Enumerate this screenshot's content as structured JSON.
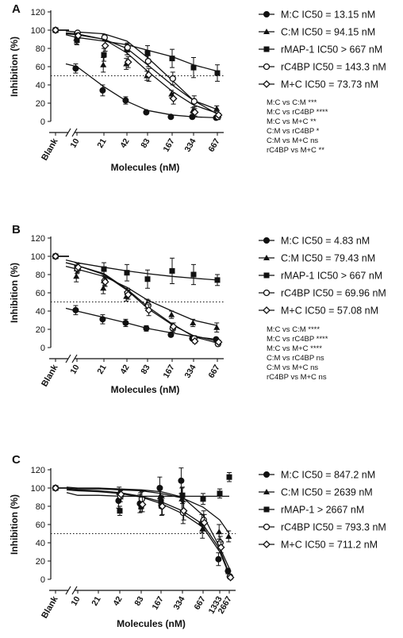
{
  "chart_data": [
    {
      "type": "line",
      "panel_label": "A",
      "ylabel": "Inhibition (%)",
      "xlabel": "Molecules (nM)",
      "ylim": [
        0,
        120
      ],
      "yticks": [
        "0",
        "20",
        "40",
        "60",
        "80",
        "100",
        "120"
      ],
      "blank_label": "Blank",
      "categories": [
        "10",
        "21",
        "42",
        "83",
        "167",
        "334",
        "667"
      ],
      "reference_line": 50,
      "legend_placement": "right",
      "series": [
        {
          "name": "M:C IC50 = 13.15 nM",
          "marker": "circle-filled",
          "blank": 100,
          "values": [
            58,
            34,
            23,
            10,
            5,
            5,
            4
          ],
          "errors": [
            5,
            6,
            4,
            1,
            1,
            1,
            1
          ],
          "fit": [
            60,
            38,
            22,
            12,
            7,
            5,
            4
          ]
        },
        {
          "name": "C:M IC50 = 94.15 nM",
          "marker": "triangle-filled",
          "blank": 100,
          "values": [
            91,
            62,
            63,
            50,
            30,
            12,
            14
          ],
          "errors": [
            6,
            8,
            6,
            5,
            4,
            3,
            3
          ],
          "fit": [
            95,
            90,
            80,
            62,
            40,
            23,
            13
          ]
        },
        {
          "name": "rMAP-1 IC50 > 667 nM",
          "marker": "square-filled",
          "blank": 100,
          "values": [
            89,
            73,
            79,
            75,
            69,
            59,
            53
          ],
          "errors": [
            5,
            7,
            6,
            8,
            10,
            11,
            9
          ],
          "fit": [
            92,
            88,
            84,
            78,
            71,
            62,
            55
          ]
        },
        {
          "name": "rC4BP IC50 = 143.3 nM",
          "marker": "circle-open",
          "blank": 100,
          "values": [
            97,
            92,
            81,
            66,
            47,
            22,
            5
          ],
          "errors": [
            2,
            3,
            5,
            6,
            7,
            6,
            3
          ],
          "fit": [
            98,
            96,
            88,
            70,
            45,
            23,
            8
          ]
        },
        {
          "name": "M+C IC50 = 73.73 nM",
          "marker": "diamond-open",
          "blank": 100,
          "values": [
            94,
            83,
            65,
            51,
            25,
            10,
            7
          ],
          "errors": [
            3,
            6,
            6,
            7,
            6,
            4,
            2
          ],
          "fit": [
            96,
            90,
            75,
            55,
            33,
            18,
            9
          ]
        }
      ],
      "stats": [
        "M:C vs C:M ***",
        "M:C vs rC4BP ****",
        "M:C vs M+C **",
        "C:M vs rC4BP *",
        "C:M vs M+C ns",
        "rC4BP vs M+C **"
      ]
    },
    {
      "type": "line",
      "panel_label": "B",
      "ylabel": "Inhibition (%)",
      "xlabel": "Molecules (nM)",
      "ylim": [
        0,
        120
      ],
      "yticks": [
        "0",
        "20",
        "40",
        "60",
        "80",
        "100",
        "120"
      ],
      "blank_label": "Blank",
      "categories": [
        "10",
        "21",
        "42",
        "83",
        "167",
        "334",
        "667"
      ],
      "reference_line": 50,
      "legend_placement": "right",
      "series": [
        {
          "name": "M:C IC50 = 4.83 nM",
          "marker": "circle-filled",
          "blank": 100,
          "values": [
            41,
            31,
            27,
            21,
            14,
            10,
            9
          ],
          "errors": [
            5,
            5,
            4,
            3,
            2,
            2,
            2
          ],
          "fit": [
            40,
            33,
            27,
            21,
            16,
            12,
            9
          ]
        },
        {
          "name": "C:M IC50 = 79.43 nM",
          "marker": "triangle-filled",
          "blank": 100,
          "values": [
            78,
            65,
            56,
            48,
            36,
            27,
            22
          ],
          "errors": [
            6,
            6,
            5,
            5,
            4,
            4,
            5
          ],
          "fit": [
            86,
            78,
            66,
            52,
            40,
            30,
            24
          ]
        },
        {
          "name": "rMAP-1 IC50 > 667 nM",
          "marker": "square-filled",
          "blank": 100,
          "values": [
            87,
            86,
            82,
            75,
            84,
            80,
            74
          ],
          "errors": [
            6,
            7,
            9,
            10,
            14,
            11,
            6
          ],
          "fit": [
            93,
            88,
            84,
            81,
            78,
            76,
            74
          ]
        },
        {
          "name": "rC4BP IC50 = 69.96 nM",
          "marker": "circle-open",
          "blank": 100,
          "values": [
            86,
            73,
            60,
            46,
            21,
            10,
            4
          ],
          "errors": [
            4,
            5,
            5,
            6,
            4,
            3,
            2
          ],
          "fit": [
            90,
            81,
            64,
            45,
            26,
            12,
            5
          ]
        },
        {
          "name": "M+C IC50 = 57.08 nM",
          "marker": "diamond-open",
          "blank": 100,
          "values": [
            88,
            72,
            58,
            41,
            23,
            7,
            6
          ],
          "errors": [
            4,
            5,
            5,
            6,
            4,
            2,
            2
          ],
          "fit": [
            90,
            80,
            63,
            43,
            25,
            13,
            7
          ]
        }
      ],
      "stats": [
        "M:C vs C:M ****",
        "M:C vs rC4BP ****",
        "M:C vs M+C ****",
        "C:M vs rC4BP ns",
        "C:M vs M+C ns",
        "rC4BP vs M+C ns"
      ]
    },
    {
      "type": "line",
      "panel_label": "C",
      "ylabel": "Inhibition (%)",
      "xlabel": "Molecules (nM)",
      "ylim": [
        0,
        120
      ],
      "yticks": [
        "0",
        "20",
        "40",
        "60",
        "80",
        "100",
        "120"
      ],
      "blank_label": "Blank",
      "categories": [
        "10",
        "21",
        "42",
        "83",
        "167",
        "334",
        "667",
        "1333",
        "2667"
      ],
      "reference_line": 50,
      "legend_placement": "right",
      "data_from_index": 2,
      "series": [
        {
          "name": "M:C IC50 = 847.2 nM",
          "marker": "circle-filled",
          "blank": 100,
          "values": [
            null,
            null,
            86,
            83,
            100,
            108,
            61,
            22,
            9
          ],
          "errors": [
            null,
            null,
            8,
            10,
            12,
            14,
            10,
            7,
            3
          ],
          "fit": [
            100,
            100,
            99,
            98,
            96,
            90,
            70,
            35,
            12
          ]
        },
        {
          "name": "C:M IC50 = 2639 nM",
          "marker": "triangle-filled",
          "blank": 100,
          "values": [
            null,
            null,
            95,
            86,
            91,
            88,
            55,
            52,
            47
          ],
          "errors": [
            null,
            null,
            6,
            9,
            10,
            12,
            10,
            8,
            6
          ],
          "fit": [
            99,
            99,
            98,
            97,
            94,
            89,
            79,
            65,
            50
          ]
        },
        {
          "name": "rMAP-1 > 2667 nM",
          "marker": "square-filled",
          "blank": 100,
          "values": [
            null,
            null,
            75,
            80,
            85,
            92,
            88,
            94,
            112
          ],
          "errors": [
            null,
            null,
            5,
            6,
            7,
            9,
            6,
            5,
            5
          ],
          "fit": [
            92,
            92,
            91,
            91,
            91,
            91,
            91,
            91,
            91
          ]
        },
        {
          "name": "rC4BP IC50 = 793.3 nM",
          "marker": "circle-open",
          "blank": 100,
          "values": [
            null,
            null,
            91,
            88,
            80,
            73,
            65,
            40,
            3
          ],
          "errors": [
            null,
            null,
            6,
            8,
            10,
            12,
            10,
            7,
            2
          ],
          "fit": [
            97,
            96,
            94,
            90,
            83,
            72,
            57,
            30,
            5
          ]
        },
        {
          "name": "M+C IC50 = 711.2 nM",
          "marker": "diamond-open",
          "blank": 100,
          "values": [
            null,
            null,
            93,
            82,
            80,
            75,
            62,
            35,
            2
          ],
          "errors": [
            null,
            null,
            5,
            8,
            9,
            10,
            9,
            6,
            2
          ],
          "fit": [
            98,
            97,
            95,
            91,
            85,
            75,
            60,
            33,
            6
          ]
        }
      ],
      "stats": []
    }
  ]
}
